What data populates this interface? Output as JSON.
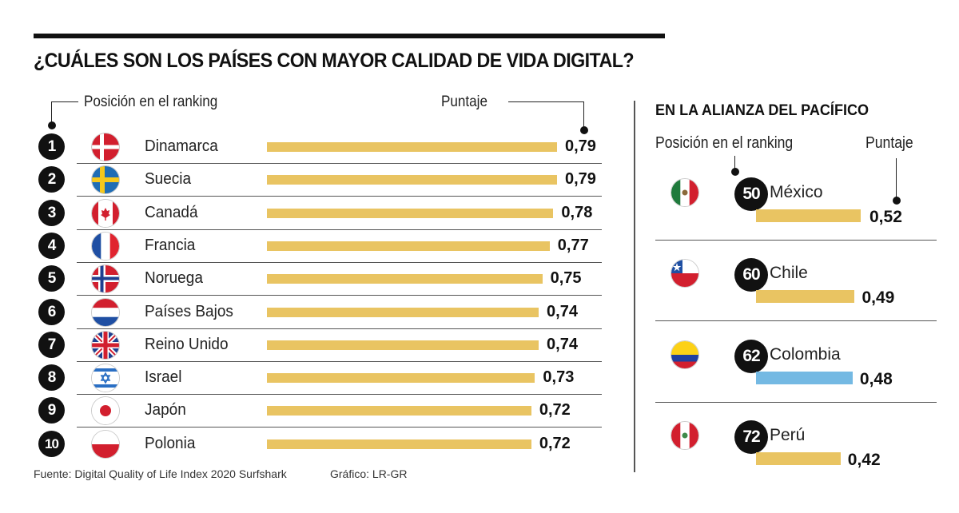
{
  "title": "¿CUÁLES SON LOS PAÍSES CON MAYOR CALIDAD DE VIDA DIGITAL?",
  "left_panel": {
    "label_position": "Posición en el ranking",
    "label_score": "Puntaje"
  },
  "right_panel": {
    "title": "EN LA ALIANZA DEL PACÍFICO",
    "label_position": "Posición en el ranking",
    "label_score": "Puntaje"
  },
  "colors": {
    "bar_default": "#e9c462",
    "bar_highlight": "#74b9e3",
    "rank_circle": "#111111"
  },
  "footer": {
    "source": "Fuente: Digital Quality of Life Index 2020 Surfshark",
    "credit": "Gráfico: LR-GR"
  },
  "chart_data": [
    {
      "type": "bar",
      "title": "¿CUÁLES SON LOS PAÍSES CON MAYOR CALIDAD DE VIDA DIGITAL?",
      "orientation": "horizontal",
      "xlabel": "Puntaje",
      "ylabel": "Posición en el ranking",
      "xlim": [
        0,
        0.79
      ],
      "rows": [
        {
          "rank": "1",
          "country": "Dinamarca",
          "flag": "denmark-flag",
          "value": 0.79,
          "label": "0,79"
        },
        {
          "rank": "2",
          "country": "Suecia",
          "flag": "sweden-flag",
          "value": 0.79,
          "label": "0,79"
        },
        {
          "rank": "3",
          "country": "Canadá",
          "flag": "canada-flag",
          "value": 0.78,
          "label": "0,78"
        },
        {
          "rank": "4",
          "country": "Francia",
          "flag": "france-flag",
          "value": 0.77,
          "label": "0,77"
        },
        {
          "rank": "5",
          "country": "Noruega",
          "flag": "norway-flag",
          "value": 0.75,
          "label": "0,75"
        },
        {
          "rank": "6",
          "country": "Países Bajos",
          "flag": "netherlands-flag",
          "value": 0.74,
          "label": "0,74"
        },
        {
          "rank": "7",
          "country": "Reino Unido",
          "flag": "uk-flag",
          "value": 0.74,
          "label": "0,74"
        },
        {
          "rank": "8",
          "country": "Israel",
          "flag": "israel-flag",
          "value": 0.73,
          "label": "0,73"
        },
        {
          "rank": "9",
          "country": "Japón",
          "flag": "japan-flag",
          "value": 0.72,
          "label": "0,72"
        },
        {
          "rank": "10",
          "country": "Polonia",
          "flag": "poland-flag",
          "value": 0.72,
          "label": "0,72"
        }
      ]
    },
    {
      "type": "bar",
      "title": "EN LA ALIANZA DEL PACÍFICO",
      "orientation": "horizontal",
      "xlabel": "Puntaje",
      "ylabel": "Posición en el ranking",
      "xlim": [
        0,
        0.52
      ],
      "rows": [
        {
          "rank": "50",
          "country": "México",
          "flag": "mexico-flag",
          "value": 0.52,
          "label": "0,52",
          "highlight": false
        },
        {
          "rank": "60",
          "country": "Chile",
          "flag": "chile-flag",
          "value": 0.49,
          "label": "0,49",
          "highlight": false
        },
        {
          "rank": "62",
          "country": "Colombia",
          "flag": "colombia-flag",
          "value": 0.48,
          "label": "0,48",
          "highlight": true
        },
        {
          "rank": "72",
          "country": "Perú",
          "flag": "peru-flag",
          "value": 0.42,
          "label": "0,42",
          "highlight": false
        }
      ]
    }
  ]
}
